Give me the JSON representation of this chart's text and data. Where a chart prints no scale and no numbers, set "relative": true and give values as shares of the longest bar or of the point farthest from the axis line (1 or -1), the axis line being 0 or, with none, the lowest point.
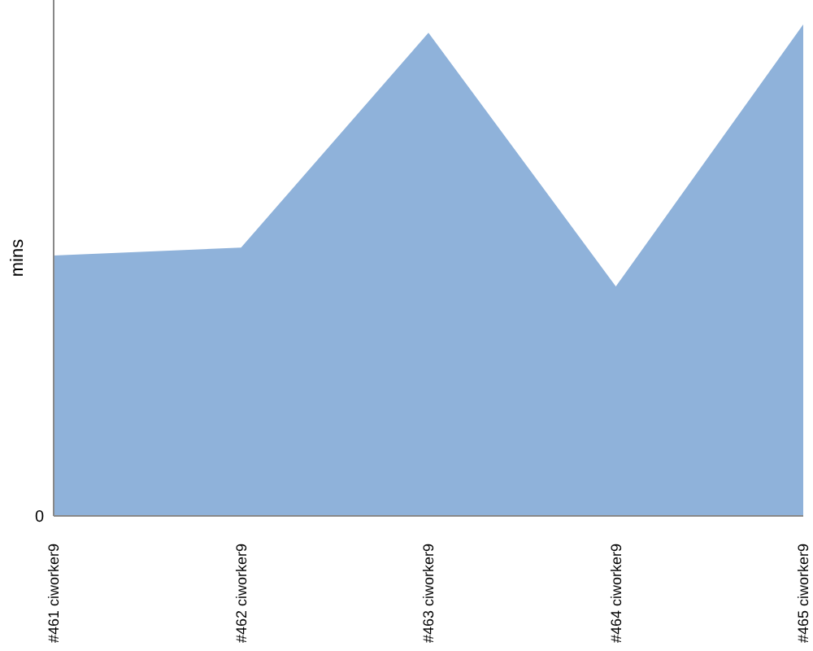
{
  "chart_data": {
    "type": "area",
    "ylabel": "mins",
    "relative": true,
    "annotations": [
      "0"
    ],
    "categories": [
      "#461 ciworker9",
      "#462 ciworker9",
      "#463 ciworker9",
      "#464 ciworker9",
      "#465 ciworker9"
    ],
    "series": [
      {
        "color": "#8fb2da",
        "values": [
          0.53,
          0.546,
          0.983,
          0.467,
          1
        ]
      }
    ]
  }
}
